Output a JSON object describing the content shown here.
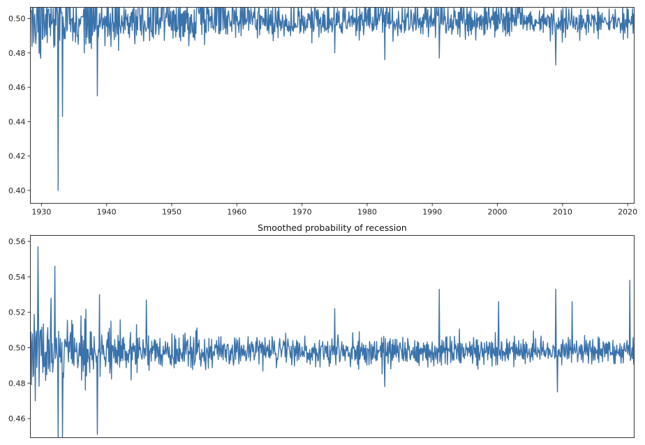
{
  "chart_data": [
    {
      "type": "line",
      "title": "",
      "xlabel": "",
      "ylabel": "",
      "xlim": [
        1928.3,
        2021.0
      ],
      "ylim": [
        0.3925,
        0.5065
      ],
      "grid": false,
      "color": "#3a72aa",
      "x_ticks": [
        1930,
        1940,
        1950,
        1960,
        1970,
        1980,
        1990,
        2000,
        2010,
        2020
      ],
      "x_tick_labels": [
        "1930",
        "1940",
        "1950",
        "1960",
        "1970",
        "1980",
        "1990",
        "2000",
        "2010",
        "2020"
      ],
      "y_ticks": [
        0.4,
        0.42,
        0.44,
        0.46,
        0.48,
        0.5
      ],
      "y_tick_labels": [
        "0.40",
        "0.42",
        "0.44",
        "0.46",
        "0.48",
        "0.50"
      ],
      "series": [
        {
          "name": "",
          "x_start": 1928.3,
          "x_end": 2021.0,
          "baseline": 0.498,
          "clip_top": true,
          "noise_by_era": [
            [
              1928.3,
              0.012
            ],
            [
              1940,
              0.007
            ],
            [
              1950,
              0.006
            ],
            [
              1960,
              0.005
            ],
            [
              1990,
              0.0045
            ],
            [
              2021,
              0.0045
            ]
          ],
          "spikes": [
            [
              1929.8,
              0.48
            ],
            [
              1932.6,
              0.4
            ],
            [
              1933.2,
              0.443
            ],
            [
              1938.6,
              0.455
            ],
            [
              1975.0,
              0.48
            ],
            [
              1982.7,
              0.476
            ],
            [
              1991.1,
              0.477
            ],
            [
              2009.0,
              0.473
            ]
          ]
        }
      ]
    },
    {
      "type": "line",
      "title": "Smoothed probability of recession",
      "xlabel": "",
      "ylabel": "",
      "xlim": [
        1928.3,
        2021.0
      ],
      "ylim": [
        0.4492,
        0.5634
      ],
      "grid": false,
      "color": "#3a72aa",
      "y_ticks": [
        0.46,
        0.48,
        0.5,
        0.52,
        0.54,
        0.56
      ],
      "y_tick_labels": [
        "0.46",
        "0.48",
        "0.50",
        "0.52",
        "0.54",
        "0.56"
      ],
      "series": [
        {
          "name": "",
          "x_start": 1928.3,
          "x_end": 2021.0,
          "baseline": 0.498,
          "clip_bottom": true,
          "noise_by_era": [
            [
              1928.3,
              0.012
            ],
            [
              1940,
              0.007
            ],
            [
              1950,
              0.006
            ],
            [
              1960,
              0.005
            ],
            [
              1990,
              0.0045
            ],
            [
              2021,
              0.0045
            ]
          ],
          "spikes": [
            [
              1929.5,
              0.557
            ],
            [
              1931.5,
              0.528
            ],
            [
              1932.1,
              0.546
            ],
            [
              1932.6,
              0.449
            ],
            [
              1933.2,
              0.449
            ],
            [
              1938.6,
              0.451
            ],
            [
              1938.9,
              0.53
            ],
            [
              1946.1,
              0.527
            ],
            [
              1975.0,
              0.522
            ],
            [
              1982.7,
              0.478
            ],
            [
              1991.1,
              0.533
            ],
            [
              2000.2,
              0.526
            ],
            [
              2009.0,
              0.533
            ],
            [
              2009.2,
              0.475
            ],
            [
              2011.5,
              0.526
            ],
            [
              2020.3,
              0.538
            ]
          ]
        }
      ]
    }
  ]
}
